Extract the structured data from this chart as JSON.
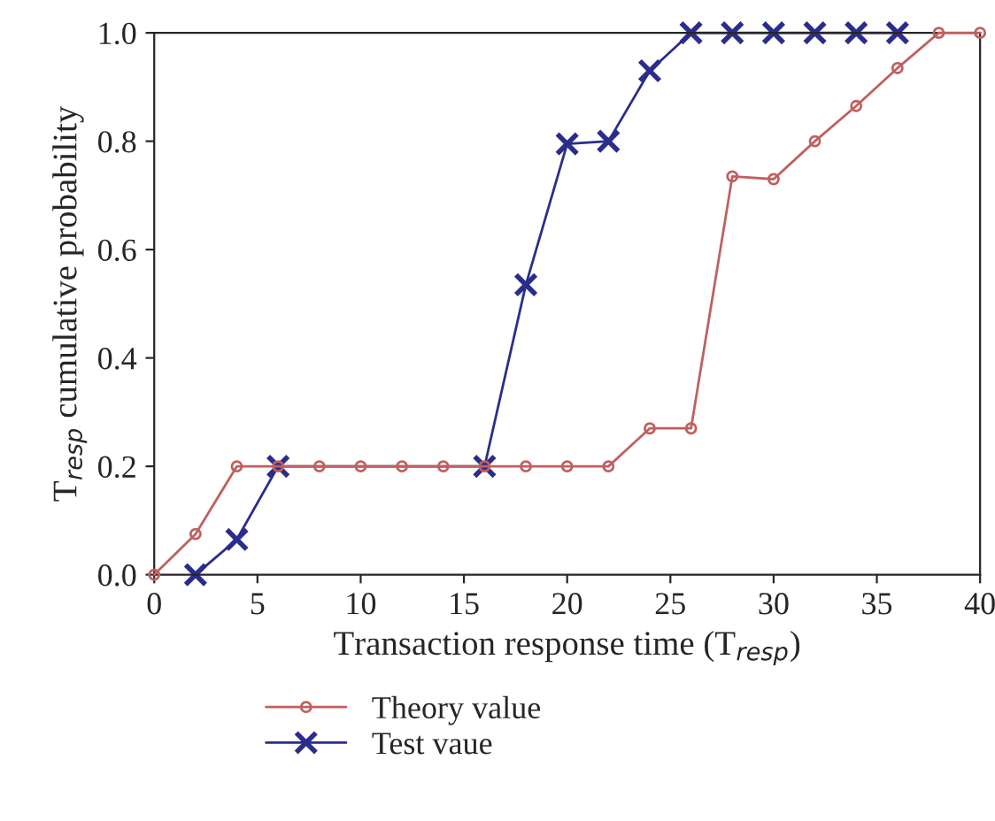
{
  "chart_data": {
    "type": "line",
    "xlabel": "Transaction response time (T$_{resp}$)",
    "ylabel": "T$_{resp}$ cumulative probability",
    "xlim": [
      0,
      40
    ],
    "xticks": [
      0,
      5,
      10,
      15,
      20,
      25,
      30,
      35,
      40
    ],
    "ylim": [
      0,
      1.0
    ],
    "yticks": [
      {
        "value": 0,
        "label": "0.0"
      },
      {
        "value": 0.2,
        "label": "0.2"
      },
      {
        "value": 0.4,
        "label": "0.4"
      },
      {
        "value": 0.6,
        "label": "0.6"
      },
      {
        "value": 0.8,
        "label": "0.8"
      },
      {
        "value": 1.0,
        "label": "1.0"
      }
    ],
    "grid": false,
    "legend": "bottom left",
    "line_style": "solid",
    "series": [
      {
        "name": "Theory value",
        "color": "#c0605f",
        "marker": "circle",
        "x": [
          0,
          2,
          4,
          6,
          8,
          10,
          12,
          14,
          16,
          18,
          20,
          22,
          24,
          26,
          28,
          30,
          32,
          34,
          36,
          38,
          40
        ],
        "values": [
          0,
          0.075,
          0.2,
          0.2,
          0.2,
          0.2,
          0.2,
          0.2,
          0.2,
          0.2,
          0.2,
          0.2,
          0.27,
          0.27,
          0.735,
          0.73,
          0.8,
          0.865,
          0.935,
          1.0,
          1.0
        ]
      },
      {
        "name": "Test vaue",
        "color": "#2b2d8c",
        "marker": "cross",
        "x": [
          2,
          4,
          6,
          16,
          18,
          20,
          22,
          24,
          26,
          28,
          30,
          32,
          34,
          36
        ],
        "values": [
          0,
          0.065,
          0.2,
          0.2,
          0.535,
          0.795,
          0.8,
          0.93,
          1.0,
          1.0,
          1.0,
          1.0,
          1.0,
          1.0
        ]
      }
    ]
  }
}
